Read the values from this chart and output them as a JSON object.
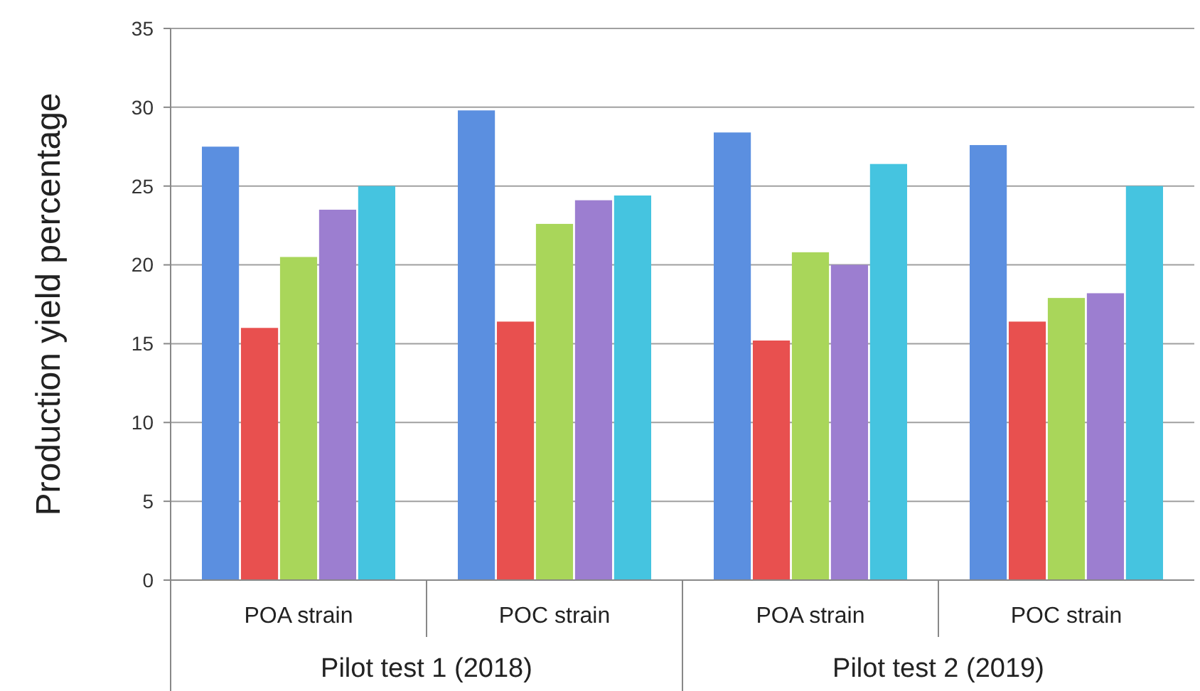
{
  "chart_data": {
    "type": "bar",
    "ylabel": "Production yield percentage",
    "categories": [
      "POA strain",
      "POC strain",
      "POA strain",
      "POC strain"
    ],
    "annotations": [
      "Pilot test 1 (2018)",
      "Pilot test 2 (2019)"
    ],
    "series": [
      {
        "color": "#5b8fe0",
        "values": [
          27.5,
          29.8,
          28.4,
          27.6
        ]
      },
      {
        "color": "#e8504f",
        "values": [
          16.0,
          16.4,
          15.2,
          16.4
        ]
      },
      {
        "color": "#a9d65a",
        "values": [
          20.5,
          22.6,
          20.8,
          17.9
        ]
      },
      {
        "color": "#9c7ed0",
        "values": [
          23.5,
          24.1,
          20.0,
          18.2
        ]
      },
      {
        "color": "#45c4e0",
        "values": [
          25.0,
          24.4,
          26.4,
          25.0
        ]
      }
    ],
    "ylim": [
      0,
      35
    ],
    "yticks": [
      0,
      5,
      10,
      15,
      20,
      25,
      30,
      35
    ],
    "grid": "y"
  }
}
